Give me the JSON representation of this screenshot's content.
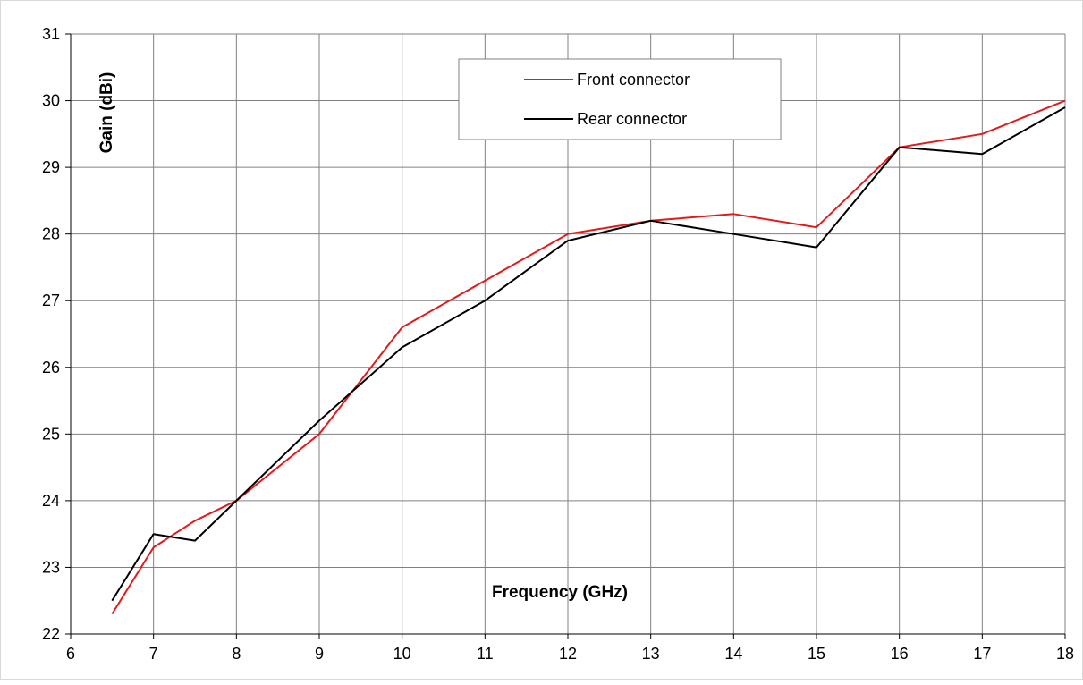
{
  "chart_data": {
    "type": "line",
    "title": "",
    "xlabel": "Frequency (GHz)",
    "ylabel": "Gain (dBi)",
    "xlim": [
      6,
      18
    ],
    "ylim": [
      22,
      31
    ],
    "x_ticks": [
      6,
      7,
      8,
      9,
      10,
      11,
      12,
      13,
      14,
      15,
      16,
      17,
      18
    ],
    "y_ticks": [
      22,
      23,
      24,
      25,
      26,
      27,
      28,
      29,
      30,
      31
    ],
    "grid": true,
    "legend_position": "top-center",
    "series": [
      {
        "name": "Front connector",
        "color": "#e31a1c",
        "x": [
          6.5,
          7,
          7.5,
          8,
          9,
          10,
          11,
          12,
          13,
          14,
          15,
          16,
          17,
          18
        ],
        "y": [
          22.3,
          23.3,
          23.7,
          24.0,
          25.0,
          26.6,
          27.3,
          28.0,
          28.2,
          28.3,
          28.1,
          29.3,
          29.5,
          30.0
        ]
      },
      {
        "name": "Rear connector",
        "color": "#000000",
        "x": [
          6.5,
          7,
          7.5,
          8,
          9,
          10,
          11,
          12,
          13,
          14,
          15,
          16,
          17,
          18
        ],
        "y": [
          22.5,
          23.5,
          23.4,
          24.0,
          25.2,
          26.3,
          27.0,
          27.9,
          28.2,
          28.0,
          27.8,
          29.3,
          29.2,
          29.9
        ]
      }
    ]
  }
}
